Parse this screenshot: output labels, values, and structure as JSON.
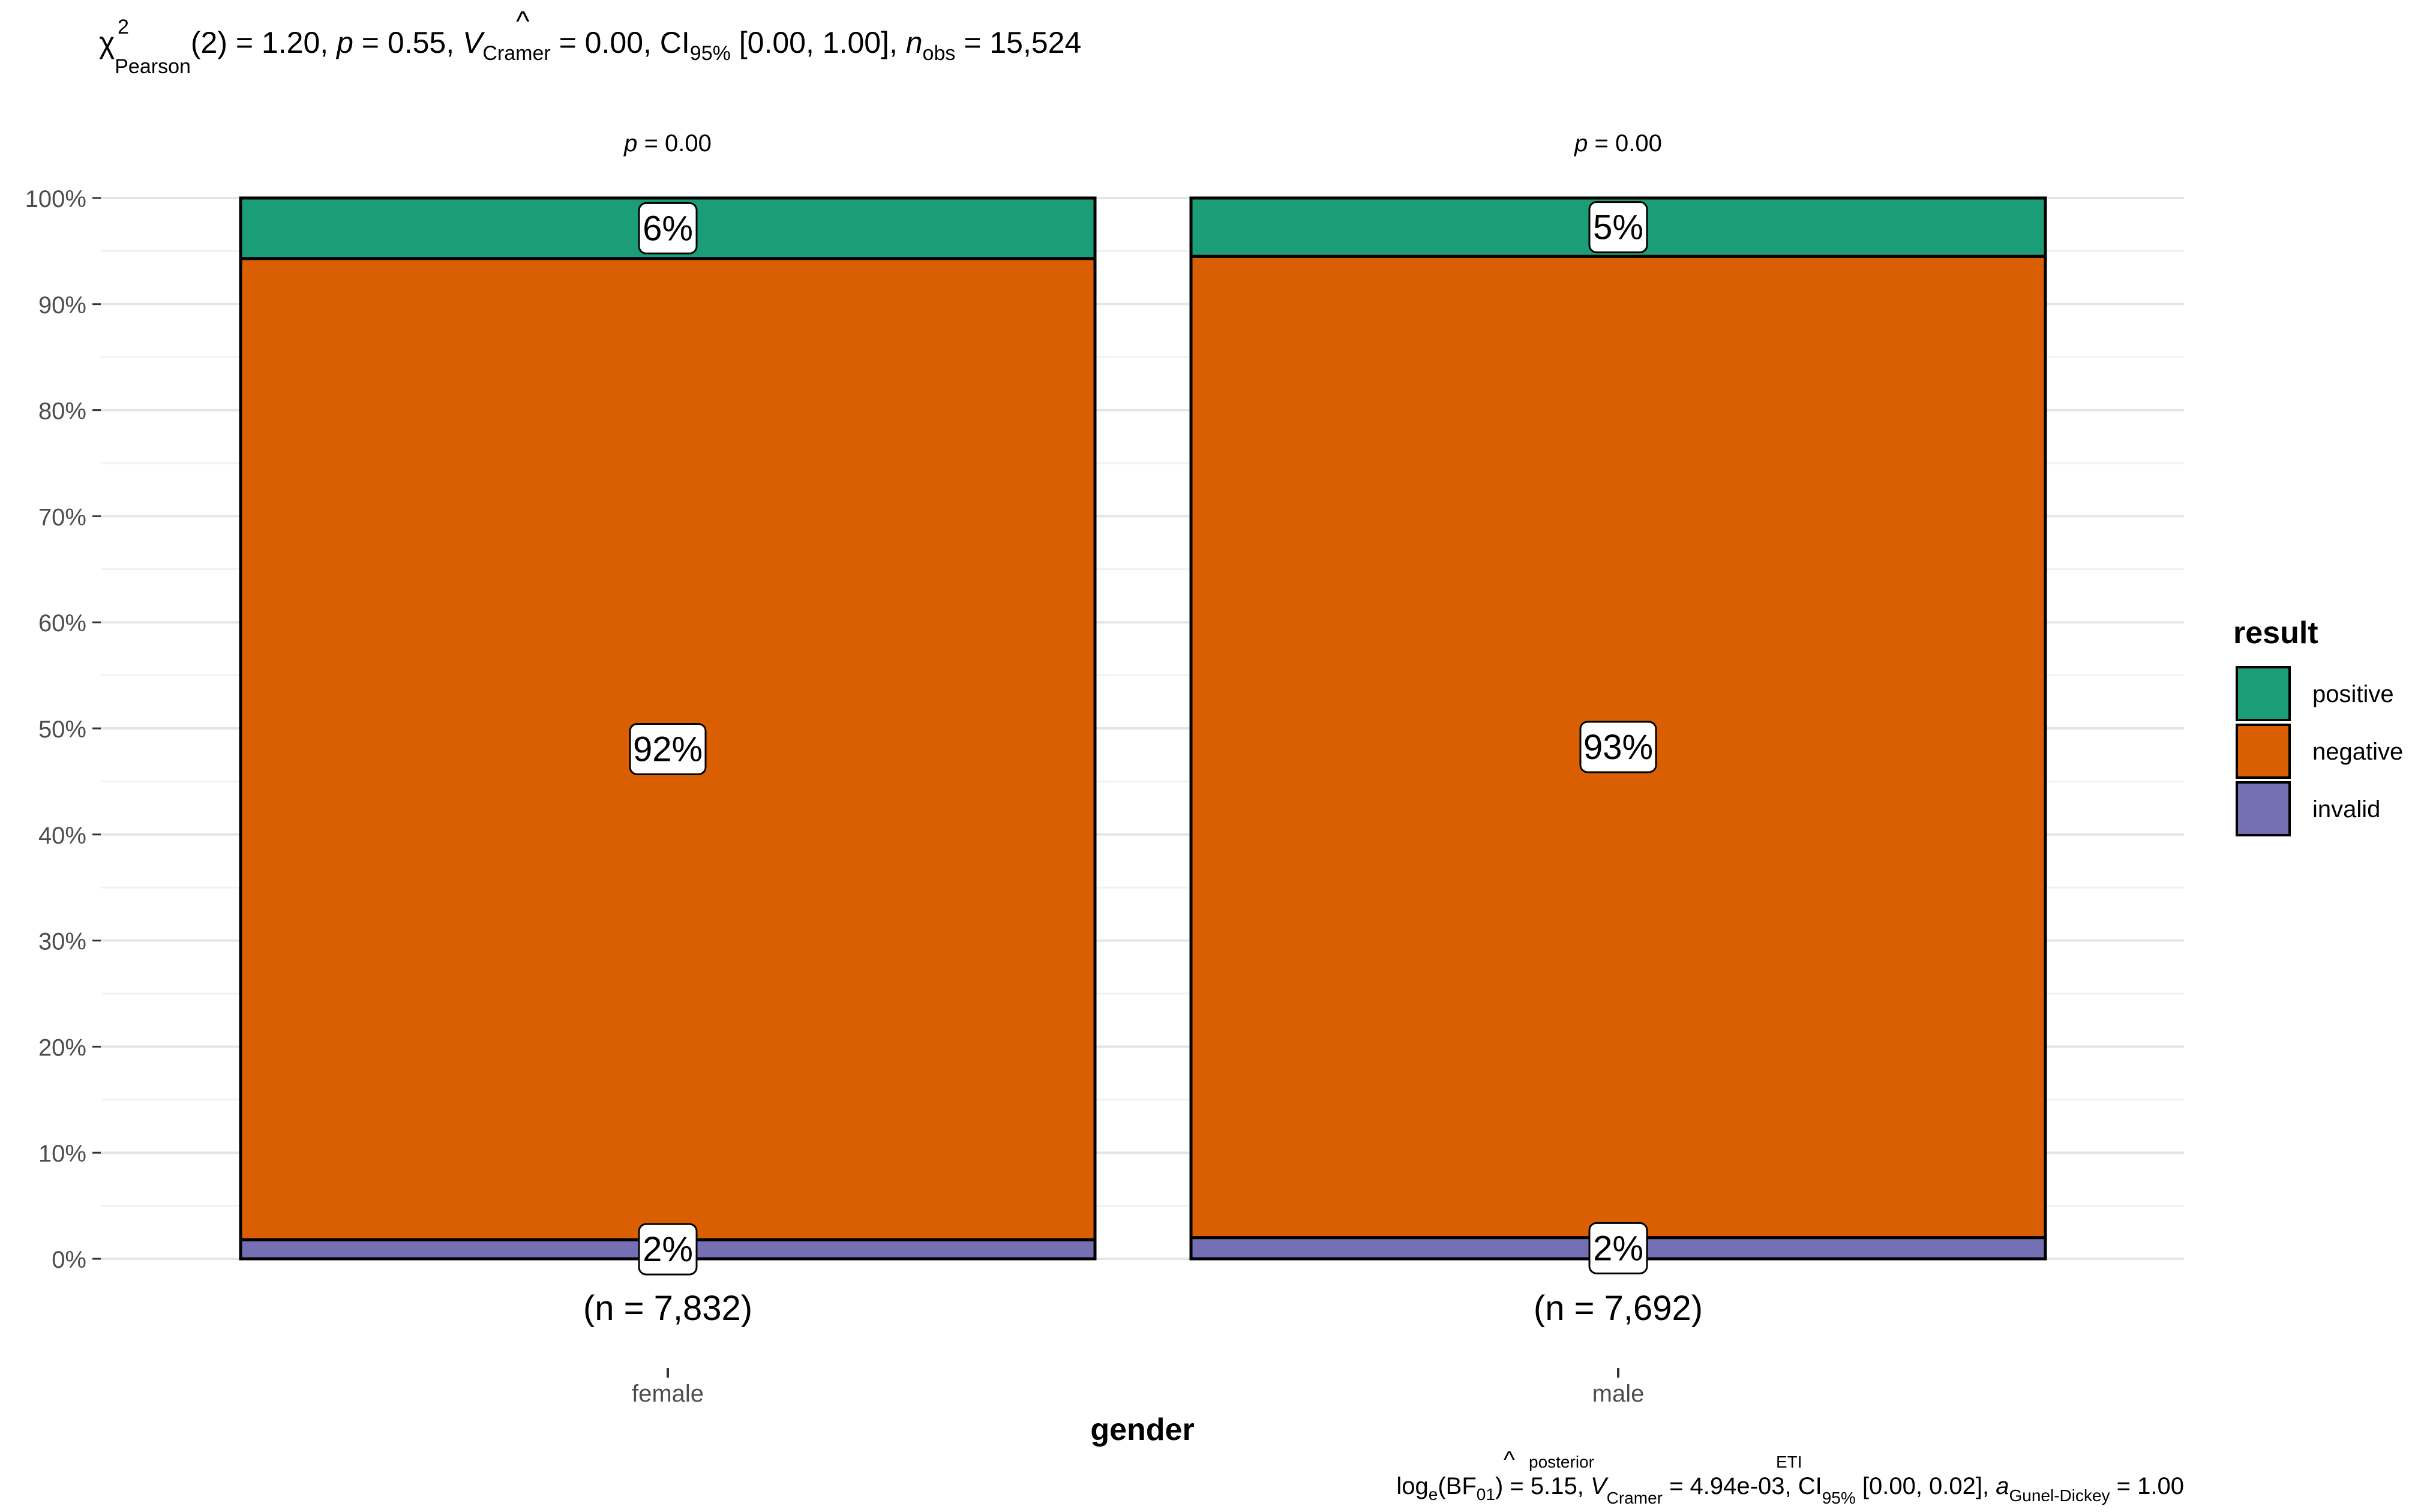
{
  "subtitle_top": {
    "chi": "χ",
    "chi_sup": "2",
    "chi_sub": "Pearson",
    "part1": "(2) = 1.20, ",
    "p": "p",
    "part2": " = 0.55, ",
    "v": "V",
    "hat": "^",
    "v_sub": "Cramer",
    "part3": " = 0.00, CI",
    "ci_sub": "95%",
    "part4": " [0.00, 1.00], ",
    "n": "n",
    "n_sub": "obs",
    "part5": " = 15,524"
  },
  "caption_bottom": {
    "log": "log",
    "log_sub": "e",
    "bf": "(BF",
    "bf_sub": "01",
    "part1": ") = 5.15, ",
    "v": "V",
    "hat": "^",
    "v_sup": "posterior",
    "v_sub": "Cramer",
    "part2": " = 4.94e-03, CI",
    "ci_sup": "ETI",
    "ci_sub": "95%",
    "part3": " [0.00, 0.02], ",
    "a": "a",
    "a_sub": "Gunel-Dickey",
    "part4": " = 1.00"
  },
  "chart_data": {
    "type": "bar",
    "stacked": true,
    "percent": true,
    "xlabel": "gender",
    "ylabel": "",
    "ylim": [
      0,
      100
    ],
    "y_ticks": [
      "0%",
      "10%",
      "20%",
      "30%",
      "40%",
      "50%",
      "60%",
      "70%",
      "80%",
      "90%",
      "100%"
    ],
    "categories": [
      "female",
      "male"
    ],
    "category_n_labels": [
      "(n = 7,832)",
      "(n = 7,692)"
    ],
    "category_p_labels": [
      {
        "p": "p",
        "rest": " = 0.00"
      },
      {
        "p": "p",
        "rest": " = 0.00"
      }
    ],
    "series": [
      {
        "name": "invalid",
        "color": "#7570B3",
        "values": [
          1.8,
          2.0
        ],
        "labels": [
          "2%",
          "2%"
        ]
      },
      {
        "name": "negative",
        "color": "#D95F02",
        "values": [
          92.5,
          92.5
        ],
        "labels": [
          "92%",
          "93%"
        ]
      },
      {
        "name": "positive",
        "color": "#1B9E77",
        "values": [
          5.7,
          5.5
        ],
        "labels": [
          "6%",
          "5%"
        ]
      }
    ],
    "legend": {
      "title": "result",
      "position": "right",
      "order": [
        "positive",
        "negative",
        "invalid"
      ]
    },
    "grid": true
  }
}
